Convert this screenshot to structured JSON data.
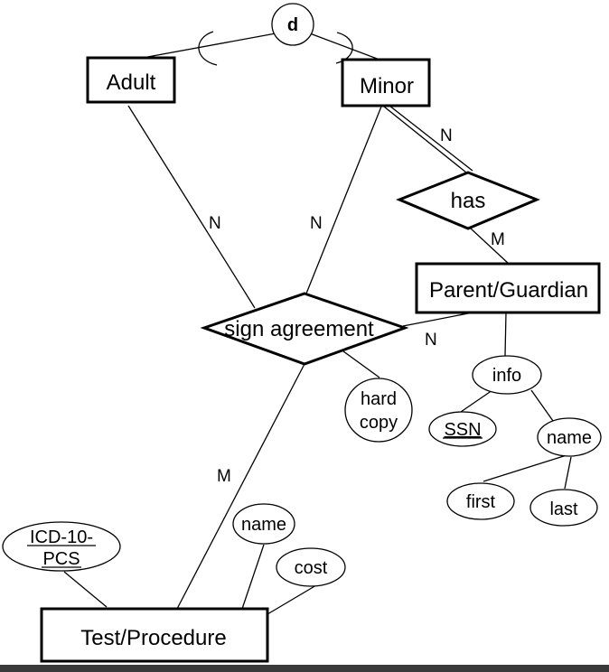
{
  "specialization": {
    "label": "d"
  },
  "entities": {
    "adult": "Adult",
    "minor": "Minor",
    "parent_guardian": "Parent/Guardian",
    "test_procedure": "Test/Procedure"
  },
  "relationships": {
    "has": "has",
    "sign_agreement": "sign agreement"
  },
  "attributes": {
    "hard_copy_line1": "hard",
    "hard_copy_line2": "copy",
    "info": "info",
    "ssn": "SSN",
    "name_parent": "name",
    "first": "first",
    "last": "last",
    "icd_line1": "ICD-10-",
    "icd_line2": "PCS",
    "name_test": "name",
    "cost": "cost"
  },
  "cardinalities": {
    "minor_has": "N",
    "has_parent": "M",
    "adult_sign": "N",
    "minor_sign": "N",
    "parent_sign": "N",
    "test_sign": "M"
  },
  "colors": {
    "stroke": "#000000",
    "background": "#ffffff",
    "bottom_bar": "#3a3a3a"
  }
}
